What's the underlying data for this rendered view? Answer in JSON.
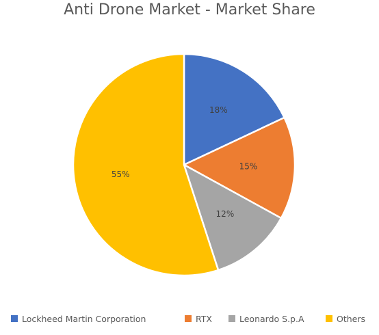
{
  "chart_data": {
    "type": "pie",
    "title": "Anti Drone Market - Market Share",
    "slices": [
      {
        "label": "Lockheed Martin Corporation",
        "value": 18,
        "display": "18%",
        "color": "#4472C4"
      },
      {
        "label": "RTX",
        "value": 15,
        "display": "15%",
        "color": "#ED7D31"
      },
      {
        "label": "Leonardo S.p.A",
        "value": 12,
        "display": "12%",
        "color": "#A5A5A5"
      },
      {
        "label": "Others",
        "value": 55,
        "display": "55%",
        "color": "#FFC000"
      }
    ],
    "legend_position": "bottom"
  }
}
